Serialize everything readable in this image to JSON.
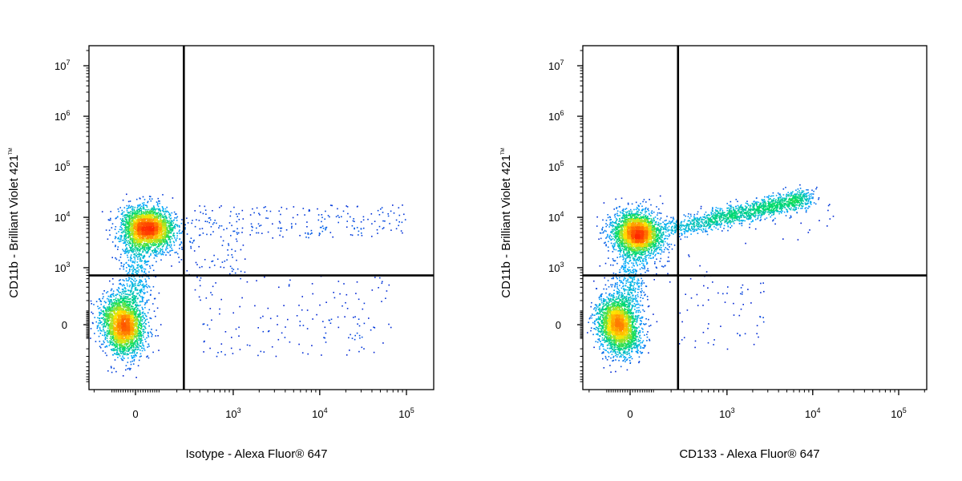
{
  "chart_data": [
    {
      "type": "scatter",
      "subtype": "flow-cytometry-density-dot-plot",
      "title": "",
      "xlabel": "Isotype - Alexa Fluor® 647",
      "ylabel": "CD11b - Brilliant Violet 421",
      "ylabel_trademark": "TM",
      "x_scale": "biexponential",
      "y_scale": "biexponential",
      "x_ticks": [
        {
          "label": "0",
          "value": 0
        },
        {
          "label": "10",
          "sup": "3",
          "value": 1000
        },
        {
          "label": "10",
          "sup": "4",
          "value": 10000
        },
        {
          "label": "10",
          "sup": "5",
          "value": 100000
        }
      ],
      "y_ticks": [
        {
          "label": "0",
          "value": 0
        },
        {
          "label": "10",
          "sup": "3",
          "value": 1000
        },
        {
          "label": "10",
          "sup": "4",
          "value": 10000
        },
        {
          "label": "10",
          "sup": "5",
          "value": 100000
        },
        {
          "label": "10",
          "sup": "6",
          "value": 1000000
        },
        {
          "label": "10",
          "sup": "7",
          "value": 10000000
        }
      ],
      "quadrant_gates": {
        "x": 250,
        "y": 700
      },
      "populations": [
        {
          "name_hint": "CD11b+ / isotype-",
          "x_center": 50,
          "y_center": 6000,
          "relative_density": "high"
        },
        {
          "name_hint": "CD11b- / isotype-",
          "x_center": -50,
          "y_center": 0,
          "relative_density": "high"
        }
      ],
      "grid": false,
      "legend": "none",
      "color_scale": [
        "#0000cc",
        "#00aaff",
        "#00dd66",
        "#ffee00",
        "#ff3300"
      ]
    },
    {
      "type": "scatter",
      "subtype": "flow-cytometry-density-dot-plot",
      "title": "",
      "xlabel": "CD133 - Alexa Fluor® 647",
      "ylabel": "CD11b - Brilliant Violet 421",
      "ylabel_trademark": "TM",
      "x_scale": "biexponential",
      "y_scale": "biexponential",
      "x_ticks": [
        {
          "label": "0",
          "value": 0
        },
        {
          "label": "10",
          "sup": "3",
          "value": 1000
        },
        {
          "label": "10",
          "sup": "4",
          "value": 10000
        },
        {
          "label": "10",
          "sup": "5",
          "value": 100000
        }
      ],
      "y_ticks": [
        {
          "label": "0",
          "value": 0
        },
        {
          "label": "10",
          "sup": "3",
          "value": 1000
        },
        {
          "label": "10",
          "sup": "4",
          "value": 10000
        },
        {
          "label": "10",
          "sup": "5",
          "value": 100000
        },
        {
          "label": "10",
          "sup": "6",
          "value": 1000000
        },
        {
          "label": "10",
          "sup": "7",
          "value": 10000000
        }
      ],
      "quadrant_gates": {
        "x": 250,
        "y": 700
      },
      "populations": [
        {
          "name_hint": "CD11b+ / CD133-",
          "x_center": 30,
          "y_center": 5000,
          "relative_density": "high"
        },
        {
          "name_hint": "CD11b+ / CD133+ streak",
          "x_center": 800,
          "y_center": 12000,
          "relative_density": "medium"
        },
        {
          "name_hint": "CD11b- / CD133-",
          "x_center": -50,
          "y_center": 0,
          "relative_density": "high"
        }
      ],
      "grid": false,
      "legend": "none",
      "color_scale": [
        "#0000cc",
        "#00aaff",
        "#00dd66",
        "#ffee00",
        "#ff3300"
      ]
    }
  ]
}
